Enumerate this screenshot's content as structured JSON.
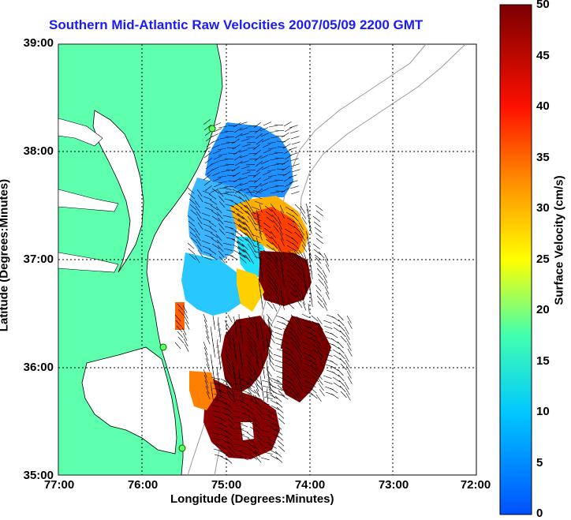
{
  "title": "Southern Mid-Atlantic Raw Velocities 2007/05/09 2200 GMT",
  "axes": {
    "xlabel": "Longitude (Degrees:Minutes)",
    "ylabel": "Latitude (Degrees:Minutes)",
    "x_ticks": [
      "77:00",
      "76:00",
      "75:00",
      "74:00",
      "73:00",
      "72:00"
    ],
    "y_ticks": [
      "39:00",
      "38:00",
      "37:00",
      "36:00",
      "35:00"
    ]
  },
  "colorbar": {
    "label": "Surface Velocity (cm/s)",
    "ticks": [
      "50",
      "45",
      "40",
      "35",
      "30",
      "25",
      "20",
      "15",
      "10",
      "5",
      "0"
    ]
  },
  "colors": {
    "land": "#5effad",
    "title": "#1a1aff",
    "low_speed": "#1e82ff",
    "high_speed": "#7a0000"
  }
}
